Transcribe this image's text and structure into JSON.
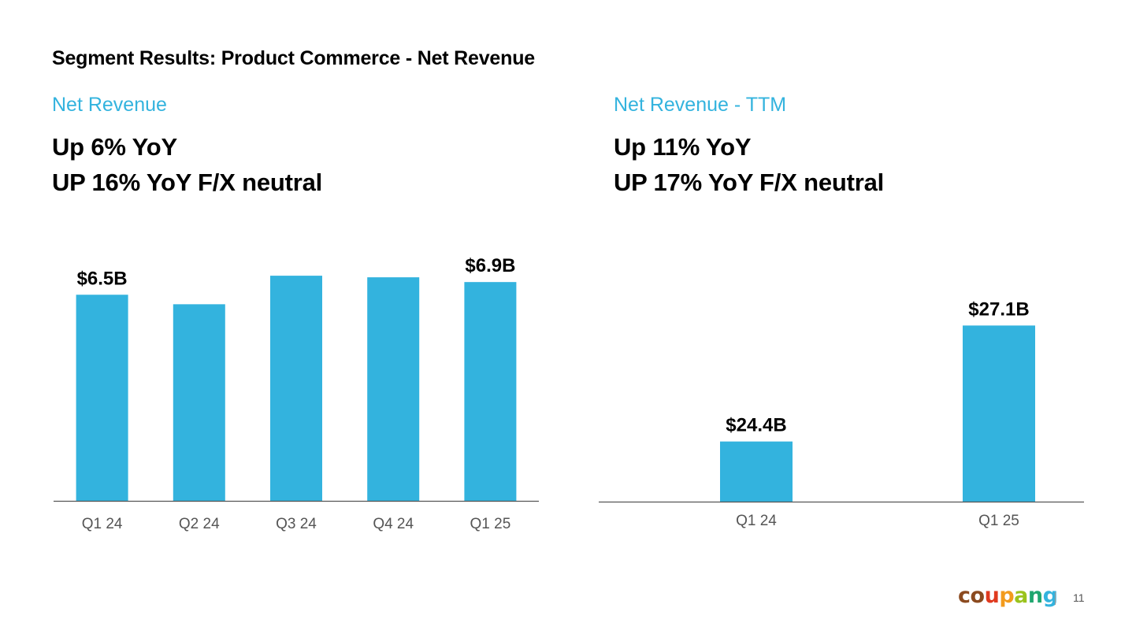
{
  "title": "Segment Results: Product Commerce - Net Revenue",
  "colors": {
    "accent": "#33b3de",
    "bar": "#33b3de",
    "axis": "#555555",
    "tick": "#555555",
    "text": "#000000"
  },
  "left_panel": {
    "label": "Net Revenue",
    "headline_1": "Up 6% YoY",
    "headline_2": "UP 16% YoY F/X neutral"
  },
  "right_panel": {
    "label": "Net Revenue - TTM",
    "headline_1": "Up 11% YoY",
    "headline_2": "UP 17% YoY F/X neutral"
  },
  "chart_data": [
    {
      "type": "bar",
      "title": "Net Revenue",
      "categories": [
        "Q1 24",
        "Q2 24",
        "Q3 24",
        "Q4 24",
        "Q1 25"
      ],
      "values": [
        6.5,
        6.2,
        7.1,
        7.05,
        6.9
      ],
      "data_labels": [
        "$6.5B",
        "",
        "",
        "",
        "$6.9B"
      ],
      "unit": "$B",
      "ylim": [
        0,
        7.5
      ],
      "grid": false,
      "xlabel": "",
      "ylabel": ""
    },
    {
      "type": "bar",
      "title": "Net Revenue - TTM",
      "categories": [
        "Q1 24",
        "Q1 25"
      ],
      "values": [
        24.4,
        27.1
      ],
      "data_labels": [
        "$24.4B",
        "$27.1B"
      ],
      "unit": "$B",
      "ylim": [
        23,
        28.5
      ],
      "grid": false,
      "xlabel": "",
      "ylabel": ""
    }
  ],
  "footer": {
    "brand": [
      "c",
      "o",
      "u",
      "p",
      "a",
      "n",
      "g"
    ],
    "brand_colors": [
      "#8b4a1f",
      "#8b4a1f",
      "#e03a1f",
      "#f29b1d",
      "#9ac31c",
      "#1fa66f",
      "#33b3de"
    ],
    "page_number": "11"
  }
}
